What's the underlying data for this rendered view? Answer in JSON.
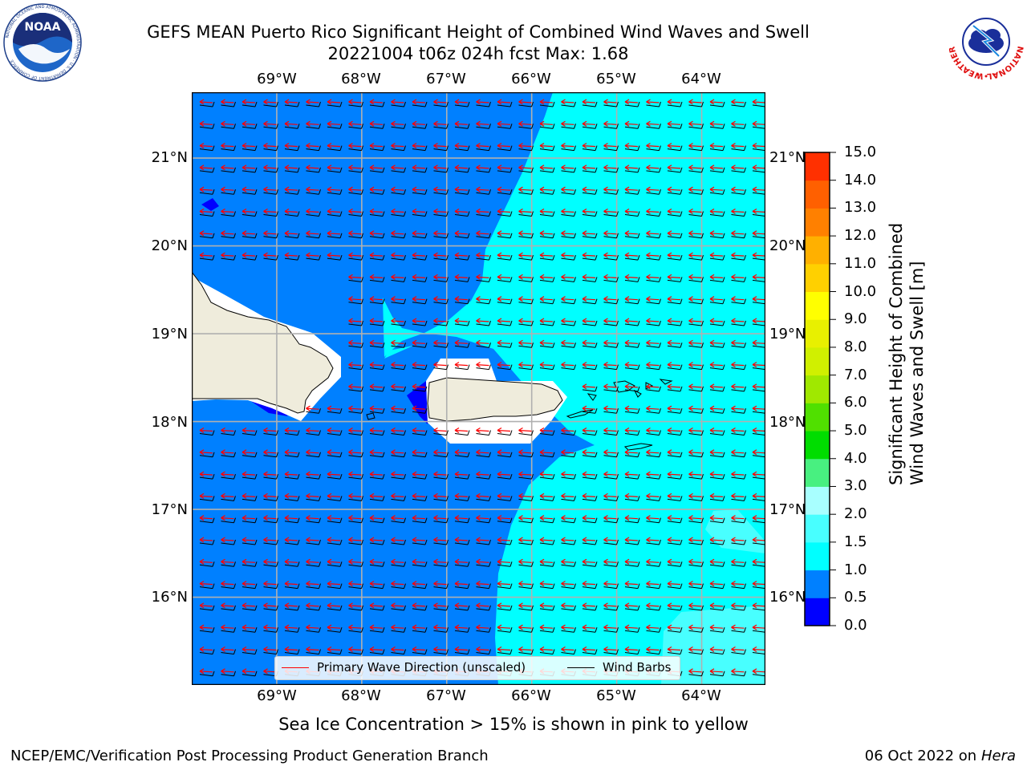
{
  "title": {
    "line1": "GEFS MEAN Puerto Rico Significant Height of Combined Wind Waves and Swell",
    "line2": "20221004 t06z 024h fcst   Max: 1.68"
  },
  "logos": {
    "noaa": {
      "text": "NOAA",
      "ring_text": "NATIONAL OCEANIC AND ATMOSPHERIC ADMINISTRATION · U.S. DEPARTMENT OF COMMERCE"
    },
    "nws": {
      "ring_text": "NATIONAL WEATHER SERVICE"
    }
  },
  "map": {
    "lon_ticks": [
      "69°W",
      "68°W",
      "67°W",
      "66°W",
      "65°W",
      "64°W"
    ],
    "lat_ticks": [
      "21°N",
      "20°N",
      "19°N",
      "18°N",
      "17°N",
      "16°N"
    ],
    "lon_range": [
      -70,
      -63.25
    ],
    "lat_range": [
      15.0,
      21.75
    ],
    "grid": true,
    "colors": {
      "ocean_0_5_1_0": "#0080ff",
      "ocean_1_0_1_5": "#00ffff",
      "ocean_1_5_2_0": "#48ffff",
      "ocean_0_0_0_5": "#0000ff",
      "land": "#efecdc",
      "wave_arrow": "#ff0000",
      "wind_barb": "#000000"
    }
  },
  "legend": {
    "wave": "Primary Wave Direction (unscaled)",
    "wind": "Wind Barbs",
    "placement": "lower-center"
  },
  "colorbar": {
    "label_line1": "Significant Height of Combined",
    "label_line2": "Wind Waves and Swell [m]",
    "ticks": [
      "0.0",
      "0.5",
      "1.0",
      "1.5",
      "2.0",
      "3.0",
      "4.0",
      "5.0",
      "6.0",
      "7.0",
      "8.0",
      "9.0",
      "10.0",
      "11.0",
      "12.0",
      "13.0",
      "14.0",
      "15.0"
    ],
    "colors": [
      "#0000ff",
      "#0080ff",
      "#00ffff",
      "#48ffff",
      "#a8ffff",
      "#48f080",
      "#00dd00",
      "#50e000",
      "#a0e800",
      "#d0f000",
      "#e8f000",
      "#ffff00",
      "#ffd000",
      "#ffb000",
      "#ff8000",
      "#ff6000",
      "#ff3000"
    ]
  },
  "note": "Sea Ice Concentration > 15% is shown in pink to yellow",
  "footer": {
    "left": "NCEP/EMC/Verification Post Processing Product Generation Branch",
    "right_prefix": "06 Oct 2022 on ",
    "right_host": "Hera"
  }
}
